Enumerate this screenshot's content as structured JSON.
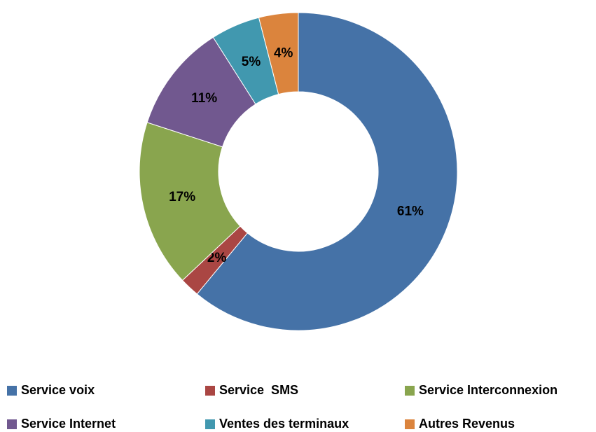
{
  "chart_data": {
    "type": "donut",
    "categories": [
      "Service voix",
      "Service  SMS",
      "Service Interconnexion",
      "Service Internet",
      "Ventes des terminaux",
      "Autres Revenus"
    ],
    "values": [
      61,
      2,
      17,
      11,
      5,
      4
    ],
    "value_labels": [
      "61%",
      "2%",
      "17%",
      "11%",
      "5%",
      "4%"
    ],
    "colors": [
      "#4572a7",
      "#aa4643",
      "#89a54e",
      "#71588f",
      "#4198af",
      "#db843d"
    ],
    "legend": "bottom"
  }
}
